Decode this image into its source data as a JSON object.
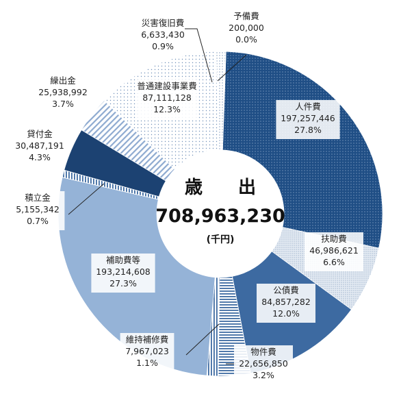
{
  "chart_data": {
    "type": "pie",
    "subtype": "donut",
    "center_title": "歳　　出",
    "center_total": "708,963,230",
    "center_unit": "(千円)",
    "slices": [
      {
        "name": "人件費",
        "value_text": "197,257,446",
        "percent_text": "27.8%",
        "value": 197257446,
        "color": "#1f4e85",
        "pattern": "dots-light"
      },
      {
        "name": "扶助費",
        "value_text": "46,986,621",
        "percent_text": "6.6%",
        "value": 46986621,
        "color": "#dfe7f0",
        "pattern": "dots-dark"
      },
      {
        "name": "公債費",
        "value_text": "84,857,282",
        "percent_text": "12.0%",
        "value": 84857282,
        "color": "#3d6aa1",
        "pattern": "none"
      },
      {
        "name": "物件費",
        "value_text": "22,656,850",
        "percent_text": "3.2%",
        "value": 22656850,
        "color": "#ffffff",
        "pattern": "hstripes"
      },
      {
        "name": "維持補修費",
        "value_text": "7,967,023",
        "percent_text": "1.1%",
        "value": 7967023,
        "color": "#ffffff",
        "pattern": "vstripes"
      },
      {
        "name": "補助費等",
        "value_text": "193,214,608",
        "percent_text": "27.3%",
        "value": 193214608,
        "color": "#95b3d7",
        "pattern": "none"
      },
      {
        "name": "積立金",
        "value_text": "5,155,342",
        "percent_text": "0.7%",
        "value": 5155342,
        "color": "#ffffff",
        "pattern": "vstripes"
      },
      {
        "name": "貸付金",
        "value_text": "30,487,191",
        "percent_text": "4.3%",
        "value": 30487191,
        "color": "#1c4272",
        "pattern": "none"
      },
      {
        "name": "繰出金",
        "value_text": "25,938,992",
        "percent_text": "3.7%",
        "value": 25938992,
        "color": "#ffffff",
        "pattern": "diag"
      },
      {
        "name": "普通建設事業費",
        "value_text": "87,111,128",
        "percent_text": "12.3%",
        "value": 87111128,
        "color": "#ffffff",
        "pattern": "dots-sparse"
      },
      {
        "name": "災害復旧費",
        "value_text": "6,633,430",
        "percent_text": "0.9%",
        "value": 6633430,
        "color": "#ffffff",
        "pattern": "dots-fine"
      },
      {
        "name": "予備費",
        "value_text": "200,000",
        "percent_text": "0.0%",
        "value": 200000,
        "color": "#1f4e85",
        "pattern": "dots-light"
      }
    ]
  }
}
